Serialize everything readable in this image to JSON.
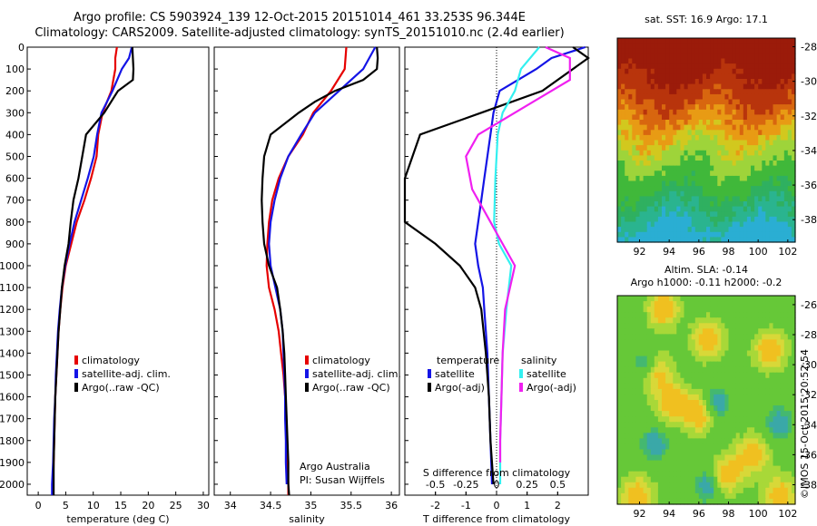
{
  "header": {
    "line1": "Argo profile: CS 5903924_139 12-Oct-2015 20151014_461 33.253S 96.344E",
    "line2": "Climatology: CARS2009. Satellite-adjusted climatology: synTS_20151010.nc (2.4d earlier)"
  },
  "colors": {
    "climatology": "#e60000",
    "satellite": "#1414e6",
    "argo": "#000000",
    "salinity_sat": "#33f0f0",
    "salinity_argo": "#f020f0"
  },
  "chart_data": [
    {
      "type": "line",
      "name": "temperature",
      "xlabel": "temperature (deg C)",
      "xlim": [
        -2,
        31
      ],
      "ylim": [
        2050,
        0
      ],
      "xticks": [
        "0",
        "5",
        "10",
        "15",
        "20",
        "25",
        "30"
      ],
      "yticks": [
        "0",
        "100",
        "200",
        "300",
        "400",
        "500",
        "600",
        "700",
        "800",
        "900",
        "1000",
        "1100",
        "1200",
        "1300",
        "1400",
        "1500",
        "1600",
        "1700",
        "1800",
        "1900",
        "2000"
      ],
      "legend": [
        "climatology",
        "satellite-adj. clim.",
        "Argo(..raw -QC)"
      ],
      "series": [
        {
          "key": "climatology",
          "points": [
            [
              14.3,
              0
            ],
            [
              14.0,
              50
            ],
            [
              14.0,
              100
            ],
            [
              13.3,
              200
            ],
            [
              11.7,
              300
            ],
            [
              10.9,
              400
            ],
            [
              10.6,
              500
            ],
            [
              9.6,
              600
            ],
            [
              8.4,
              700
            ],
            [
              7.0,
              800
            ],
            [
              6.0,
              900
            ],
            [
              5.0,
              1000
            ],
            [
              4.4,
              1100
            ],
            [
              4.0,
              1200
            ],
            [
              3.7,
              1300
            ],
            [
              3.5,
              1400
            ],
            [
              3.3,
              1500
            ],
            [
              3.1,
              1600
            ],
            [
              3.0,
              1700
            ],
            [
              2.9,
              1800
            ],
            [
              2.8,
              1900
            ],
            [
              2.7,
              2000
            ],
            [
              2.7,
              2050
            ]
          ]
        },
        {
          "key": "satellite",
          "points": [
            [
              17.0,
              0
            ],
            [
              16.5,
              50
            ],
            [
              15.2,
              100
            ],
            [
              13.5,
              200
            ],
            [
              11.5,
              300
            ],
            [
              10.7,
              400
            ],
            [
              10.1,
              500
            ],
            [
              9.0,
              600
            ],
            [
              7.8,
              700
            ],
            [
              6.6,
              800
            ],
            [
              5.7,
              900
            ],
            [
              4.9,
              1000
            ],
            [
              4.3,
              1100
            ],
            [
              3.9,
              1200
            ],
            [
              3.6,
              1300
            ],
            [
              3.4,
              1400
            ],
            [
              3.2,
              1500
            ],
            [
              3.1,
              1600
            ],
            [
              2.9,
              1700
            ],
            [
              2.8,
              1800
            ],
            [
              2.7,
              1900
            ],
            [
              2.5,
              2000
            ],
            [
              2.5,
              2050
            ]
          ]
        },
        {
          "key": "argo",
          "points": [
            [
              17.1,
              0
            ],
            [
              17.2,
              50
            ],
            [
              17.3,
              100
            ],
            [
              17.2,
              150
            ],
            [
              14.5,
              200
            ],
            [
              12.0,
              300
            ],
            [
              8.7,
              400
            ],
            [
              8.0,
              500
            ],
            [
              7.3,
              600
            ],
            [
              6.4,
              700
            ],
            [
              5.9,
              800
            ],
            [
              5.5,
              900
            ],
            [
              4.8,
              1000
            ],
            [
              4.3,
              1100
            ],
            [
              4.0,
              1200
            ],
            [
              3.7,
              1300
            ],
            [
              3.5,
              1400
            ],
            [
              3.3,
              1500
            ],
            [
              3.1,
              1600
            ],
            [
              3.0,
              1700
            ],
            [
              2.9,
              1800
            ],
            [
              2.8,
              1900
            ],
            [
              2.8,
              2000
            ],
            [
              2.8,
              2050
            ]
          ]
        }
      ]
    },
    {
      "type": "line",
      "name": "salinity",
      "xlabel": "salinity",
      "xlim": [
        33.8,
        36.1
      ],
      "ylim": [
        2050,
        0
      ],
      "xticks": [
        "34",
        "34.5",
        "35",
        "35.5",
        "36"
      ],
      "legend": [
        "climatology",
        "satellite-adj. clim.",
        "Argo(..raw -QC)"
      ],
      "annotation": [
        "Argo Australia",
        "PI: Susan Wijffels"
      ],
      "series": [
        {
          "key": "climatology",
          "points": [
            [
              35.44,
              0
            ],
            [
              35.42,
              100
            ],
            [
              35.25,
              200
            ],
            [
              35.03,
              300
            ],
            [
              34.9,
              400
            ],
            [
              34.72,
              500
            ],
            [
              34.6,
              600
            ],
            [
              34.52,
              700
            ],
            [
              34.48,
              800
            ],
            [
              34.46,
              900
            ],
            [
              34.45,
              1000
            ],
            [
              34.48,
              1100
            ],
            [
              34.55,
              1200
            ],
            [
              34.6,
              1300
            ],
            [
              34.63,
              1400
            ],
            [
              34.66,
              1500
            ],
            [
              34.68,
              1600
            ],
            [
              34.69,
              1700
            ],
            [
              34.7,
              1800
            ],
            [
              34.71,
              1900
            ],
            [
              34.72,
              2000
            ],
            [
              34.72,
              2050
            ]
          ]
        },
        {
          "key": "satellite",
          "points": [
            [
              35.8,
              0
            ],
            [
              35.65,
              100
            ],
            [
              35.35,
              200
            ],
            [
              35.05,
              300
            ],
            [
              34.88,
              400
            ],
            [
              34.72,
              500
            ],
            [
              34.62,
              600
            ],
            [
              34.55,
              700
            ],
            [
              34.5,
              800
            ],
            [
              34.48,
              900
            ],
            [
              34.5,
              1000
            ],
            [
              34.56,
              1100
            ],
            [
              34.62,
              1200
            ],
            [
              34.65,
              1300
            ],
            [
              34.66,
              1400
            ],
            [
              34.67,
              1500
            ],
            [
              34.68,
              1600
            ],
            [
              34.68,
              1700
            ],
            [
              34.69,
              1800
            ],
            [
              34.69,
              1900
            ],
            [
              34.7,
              2000
            ]
          ]
        },
        {
          "key": "argo",
          "points": [
            [
              35.82,
              0
            ],
            [
              35.83,
              50
            ],
            [
              35.82,
              100
            ],
            [
              35.65,
              150
            ],
            [
              35.3,
              200
            ],
            [
              35.05,
              250
            ],
            [
              34.85,
              300
            ],
            [
              34.5,
              400
            ],
            [
              34.42,
              500
            ],
            [
              34.4,
              600
            ],
            [
              34.39,
              700
            ],
            [
              34.4,
              800
            ],
            [
              34.42,
              900
            ],
            [
              34.48,
              1000
            ],
            [
              34.58,
              1100
            ],
            [
              34.62,
              1200
            ],
            [
              34.65,
              1300
            ],
            [
              34.67,
              1400
            ],
            [
              34.68,
              1500
            ],
            [
              34.69,
              1600
            ],
            [
              34.7,
              1700
            ],
            [
              34.71,
              1800
            ],
            [
              34.72,
              1900
            ],
            [
              34.72,
              2000
            ],
            [
              34.73,
              2050
            ]
          ]
        }
      ]
    },
    {
      "type": "line",
      "name": "difference",
      "xlabel": "T difference from climatology",
      "top_label": "S difference from climatology",
      "xlim": [
        -3.0,
        3.0
      ],
      "slim": [
        -0.75,
        0.75
      ],
      "ylim": [
        2050,
        0
      ],
      "xticks": [
        "-2",
        "-1",
        "0",
        "1",
        "2"
      ],
      "sticks": [
        "-0.5",
        "-0.25",
        "0",
        "0.25",
        "0.5"
      ],
      "legend_headers": [
        "temperature",
        "salinity"
      ],
      "legend": [
        "satellite",
        "Argo(-adj)",
        "satellite",
        "Argo(-adj)"
      ],
      "series": [
        {
          "key": "t_satellite",
          "points": [
            [
              2.9,
              0
            ],
            [
              1.8,
              50
            ],
            [
              1.3,
              100
            ],
            [
              0.1,
              200
            ],
            [
              -0.1,
              300
            ],
            [
              -0.2,
              400
            ],
            [
              -0.3,
              500
            ],
            [
              -0.4,
              600
            ],
            [
              -0.5,
              700
            ],
            [
              -0.6,
              800
            ],
            [
              -0.7,
              900
            ],
            [
              -0.6,
              1000
            ],
            [
              -0.45,
              1100
            ],
            [
              -0.4,
              1200
            ],
            [
              -0.3,
              1400
            ],
            [
              -0.25,
              1600
            ],
            [
              -0.2,
              1800
            ],
            [
              -0.15,
              2000
            ]
          ]
        },
        {
          "key": "t_argo",
          "points": [
            [
              2.5,
              0
            ],
            [
              3.0,
              50
            ],
            [
              1.5,
              200
            ],
            [
              -0.5,
              300
            ],
            [
              -2.5,
              400
            ],
            [
              -3.0,
              600
            ],
            [
              -3.0,
              800
            ],
            [
              -2.0,
              900
            ],
            [
              -1.2,
              1000
            ],
            [
              -0.7,
              1100
            ],
            [
              -0.5,
              1200
            ],
            [
              -0.35,
              1400
            ],
            [
              -0.25,
              1600
            ],
            [
              -0.2,
              1800
            ],
            [
              -0.1,
              2000
            ]
          ]
        },
        {
          "key": "s_satellite",
          "points": [
            [
              0.35,
              0
            ],
            [
              0.2,
              100
            ],
            [
              0.15,
              200
            ],
            [
              0.05,
              300
            ],
            [
              0.01,
              400
            ],
            [
              -0.01,
              600
            ],
            [
              -0.02,
              800
            ],
            [
              0.02,
              900
            ],
            [
              0.12,
              1000
            ],
            [
              0.08,
              1200
            ],
            [
              0.05,
              1400
            ],
            [
              0.04,
              1600
            ],
            [
              0.03,
              1800
            ],
            [
              0.03,
              2000
            ]
          ]
        },
        {
          "key": "s_argo",
          "points": [
            [
              0.4,
              0
            ],
            [
              0.6,
              50
            ],
            [
              0.6,
              150
            ],
            [
              0.3,
              250
            ],
            [
              -0.15,
              400
            ],
            [
              -0.25,
              500
            ],
            [
              -0.2,
              650
            ],
            [
              -0.05,
              800
            ],
            [
              0.05,
              900
            ],
            [
              0.15,
              1000
            ],
            [
              0.07,
              1200
            ],
            [
              0.05,
              1400
            ],
            [
              0.04,
              1600
            ],
            [
              0.03,
              1800
            ],
            [
              0.03,
              1900
            ]
          ]
        }
      ]
    },
    {
      "type": "heatmap",
      "name": "sst_map",
      "title": "sat. SST: 16.9 Argo: 17.1",
      "xticks": [
        "92",
        "94",
        "96",
        "98",
        "100",
        "102"
      ],
      "yticks": [
        "-28",
        "-30",
        "-32",
        "-34",
        "-36",
        "-38"
      ]
    },
    {
      "type": "heatmap",
      "name": "sla_map",
      "title": [
        "Altim. SLA: -0.14",
        "Argo h1000: -0.11 h2000: -0.2"
      ],
      "xticks": [
        "92",
        "94",
        "96",
        "98",
        "100",
        "102"
      ],
      "yticks": [
        "-26",
        "-28",
        "-30",
        "-32",
        "-34",
        "-36",
        "-38"
      ]
    }
  ],
  "credit": "©IMOS 15-Oct-2015 20:52:54"
}
